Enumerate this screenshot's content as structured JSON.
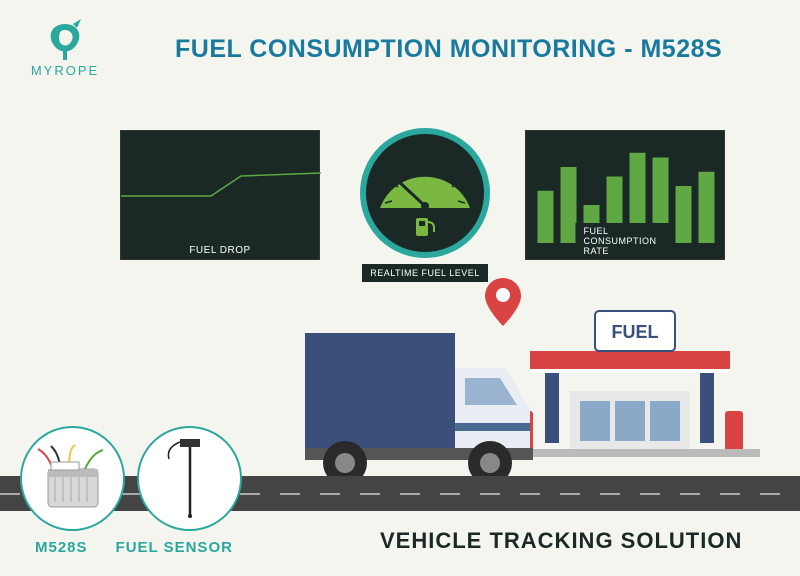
{
  "brand": {
    "name": "MYROPE"
  },
  "header": {
    "title": "FUEL CONSUMPTION MONITORING - M528S"
  },
  "panels": {
    "fuel_drop": {
      "label": "FUEL DROP",
      "line_color": "#5fa843",
      "background": "#1a2826",
      "points": [
        [
          0,
          65
        ],
        [
          90,
          65
        ],
        [
          120,
          45
        ],
        [
          200,
          42
        ]
      ]
    },
    "gauge": {
      "label": "REALTIME FUEL LEVEL",
      "ring_color": "#2aa89e",
      "face_color": "#7ab842",
      "background": "#1a2826"
    },
    "bars": {
      "label": "FUEL CONSUMPTION RATE",
      "bar_color": "#5fa843",
      "background": "#1a2826",
      "values": [
        55,
        80,
        40,
        70,
        95,
        90,
        60,
        75
      ]
    }
  },
  "fuel_station": {
    "sign_text": "FUEL",
    "canopy_color": "#d94343",
    "pillar_color": "#3a4f7a",
    "body_color": "#e8e8e8"
  },
  "truck": {
    "cab_color": "#e8eef4",
    "cab_stripe": "#4a6a90",
    "box_color": "#3a4f7a",
    "wheel_color": "#2a2a2a"
  },
  "pin": {
    "color": "#d94343"
  },
  "products": {
    "m528s": {
      "label": "M528S"
    },
    "sensor": {
      "label": "FUEL SENSOR"
    }
  },
  "footer": {
    "title": "VEHICLE TRACKING SOLUTION"
  },
  "colors": {
    "accent": "#2aa89e",
    "title_blue": "#1a7a9e"
  }
}
